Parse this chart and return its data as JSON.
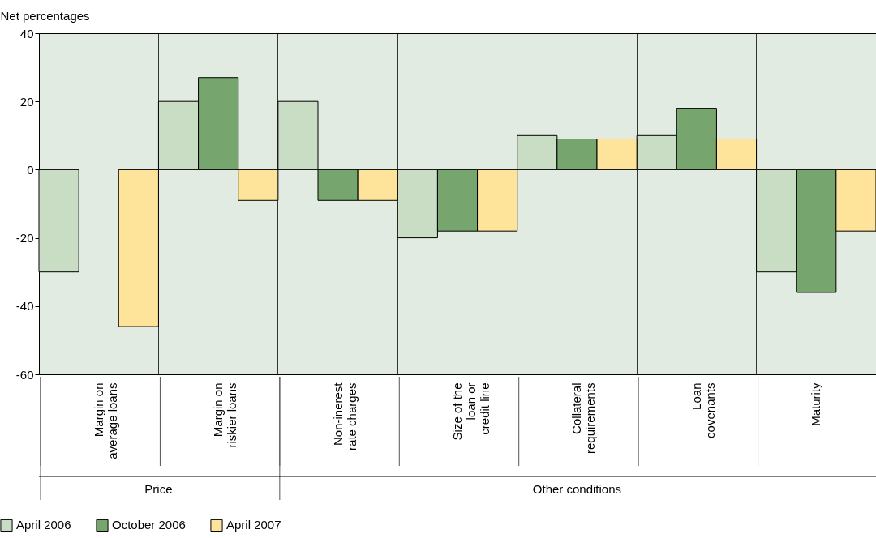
{
  "chart_data": {
    "type": "bar",
    "ylabel": "Net percentages",
    "categories": [
      "Margin on average loans",
      "Margin on riskier loans",
      "Non-inerest rate charges",
      "Size of the loan or credit line",
      "Collateral requirements",
      "Loan covenants",
      "Maturity"
    ],
    "series": [
      {
        "name": "April 2006",
        "color": "#c9dcc4",
        "values": [
          -30,
          20,
          20,
          -20,
          10,
          10,
          -30
        ]
      },
      {
        "name": "October 2006",
        "color": "#77a56e",
        "values": [
          null,
          27,
          -9,
          -18,
          9,
          18,
          -36
        ]
      },
      {
        "name": "April 2007",
        "color": "#fde49a",
        "values": [
          -46,
          -9,
          -9,
          -18,
          9,
          9,
          -18
        ]
      }
    ],
    "ylim": [
      -60,
      40
    ],
    "yticks": [
      -60,
      -40,
      -20,
      0,
      20,
      40
    ],
    "annotations": [
      "Price",
      "Other conditions"
    ],
    "grid": "x",
    "legend": "bottom left"
  }
}
